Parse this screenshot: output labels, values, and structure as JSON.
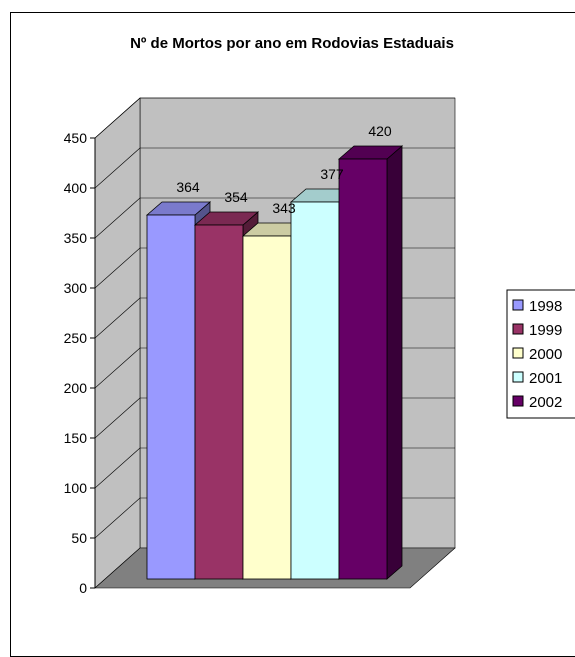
{
  "chart_data": {
    "type": "bar",
    "title": "Nº de Mortos por ano em Rodovias Estaduais",
    "xlabel": "",
    "ylabel": "",
    "ylim": [
      0,
      450
    ],
    "yticks": [
      0,
      50,
      100,
      150,
      200,
      250,
      300,
      350,
      400,
      450
    ],
    "grid": true,
    "three_d": true,
    "legend_position": "right",
    "series": [
      {
        "name": "1998",
        "value": 364,
        "label": "364",
        "color": "#9999ff"
      },
      {
        "name": "1999",
        "value": 354,
        "label": "354",
        "color": "#993366"
      },
      {
        "name": "2000",
        "value": 343,
        "label": "343",
        "color": "#ffffcc"
      },
      {
        "name": "2001",
        "value": 377,
        "label": "377",
        "color": "#ccffff"
      },
      {
        "name": "2002",
        "value": 420,
        "label": "420",
        "color": "#660066"
      }
    ],
    "wall_color": "#c0c0c0",
    "floor_color": "#808080"
  }
}
